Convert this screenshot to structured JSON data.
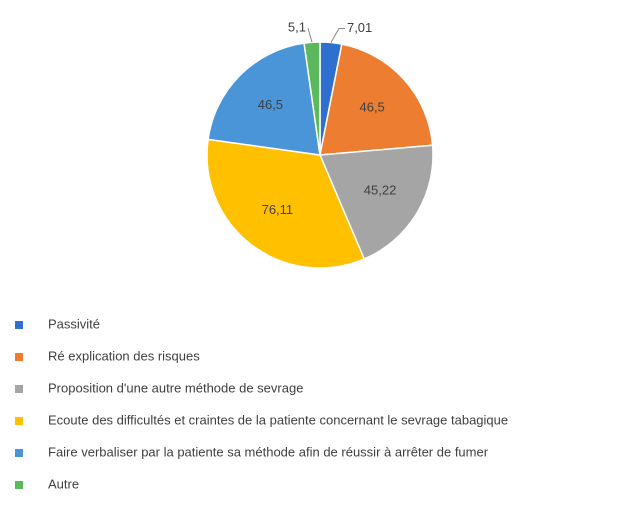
{
  "chart_data": {
    "type": "pie",
    "categories": [
      "Passivité",
      "Ré explication des risques",
      "Proposition d'une autre méthode de sevrage",
      "Ecoute des difficultés et craintes de la patiente concernant le sevrage tabagique",
      "Faire verbaliser par la patiente sa méthode afin de réussir à arrêter de fumer",
      "Autre"
    ],
    "values": [
      7.01,
      46.5,
      45.22,
      76.11,
      46.5,
      5.1
    ],
    "value_labels": [
      "7,01",
      "46,5",
      "45,22",
      "76,11",
      "46,5",
      "5,1"
    ],
    "colors": [
      "#2f6fd0",
      "#ed7d31",
      "#a5a5a5",
      "#ffc000",
      "#4a94d8",
      "#5cb85c"
    ],
    "legend": "bottom"
  }
}
